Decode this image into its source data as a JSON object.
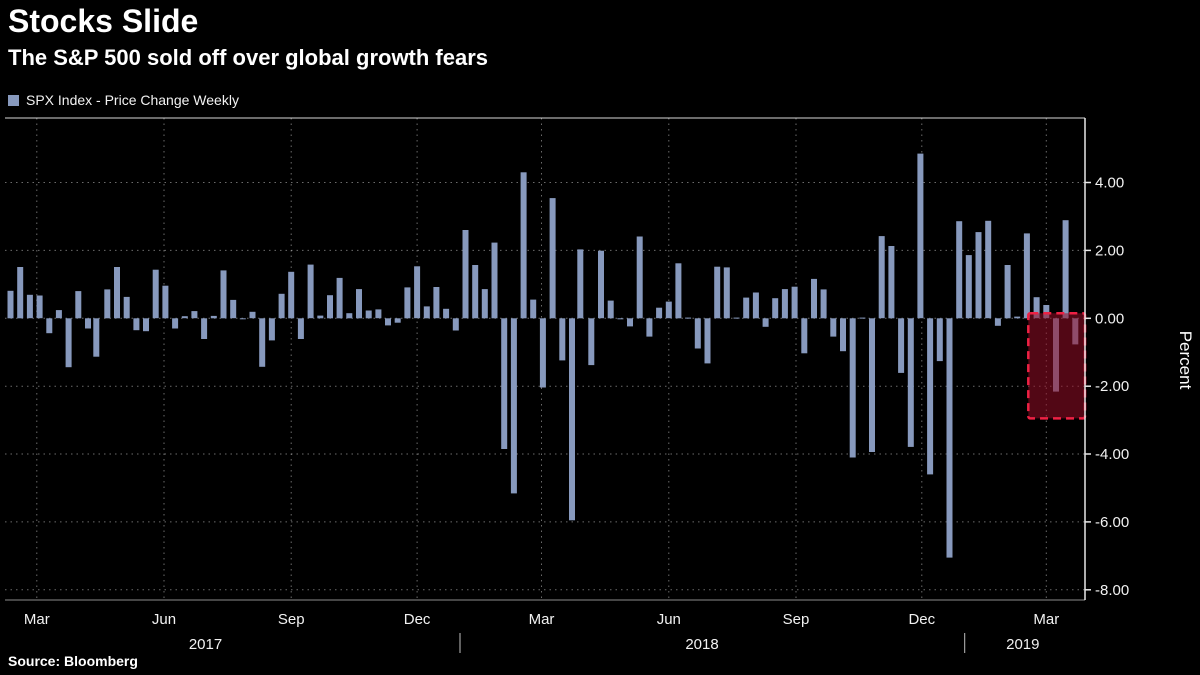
{
  "header": {
    "title": "Stocks Slide",
    "subtitle": "The S&P 500 sold off over global growth fears"
  },
  "legend": {
    "label": "SPX Index - Price Change Weekly",
    "swatch_color": "#8799bd"
  },
  "footer": {
    "source": "Source: Bloomberg"
  },
  "chart_data": {
    "type": "bar",
    "title": "Stocks Slide",
    "subtitle": "The S&P 500 sold off over global growth fears",
    "legend": "SPX Index - Price Change Weekly",
    "ylabel": "Percent",
    "ylim": [
      -8.3,
      5.9
    ],
    "yticks": [
      4,
      2,
      0,
      -2,
      -4,
      -6,
      -8
    ],
    "ytick_labels": [
      "4.00",
      "2.00",
      "0.00",
      "-2.00",
      "-4.00",
      "-6.00",
      "-8.00"
    ],
    "grid": true,
    "bar_color": "#8799bd",
    "x_start": "2017-02-06",
    "x_end": "2019-03-29",
    "months": [
      {
        "date": "2017-03-01",
        "label": "Mar"
      },
      {
        "date": "2017-06-01",
        "label": "Jun"
      },
      {
        "date": "2017-09-01",
        "label": "Sep"
      },
      {
        "date": "2017-12-01",
        "label": "Dec"
      },
      {
        "date": "2018-03-01",
        "label": "Mar"
      },
      {
        "date": "2018-06-01",
        "label": "Jun"
      },
      {
        "date": "2018-09-01",
        "label": "Sep"
      },
      {
        "date": "2018-12-01",
        "label": "Dec"
      },
      {
        "date": "2019-03-01",
        "label": "Mar"
      }
    ],
    "years": [
      {
        "date": "2017-07-01",
        "label": "2017"
      },
      {
        "date": "2018-06-25",
        "label": "2018"
      },
      {
        "date": "2019-02-12",
        "label": "2019"
      }
    ],
    "year_separators": [
      "2018-01-01",
      "2019-01-01"
    ],
    "highlight": {
      "date_start": "2019-02-16",
      "date_end": "2019-03-29",
      "value_top": 0.15,
      "value_bottom": -2.95,
      "fill": "rgba(150,12,38,0.55)",
      "border": "#ee2144"
    },
    "series": [
      {
        "name": "SPX Index - Price Change Weekly",
        "unit": "percent",
        "points": [
          [
            "2017-02-10",
            0.81
          ],
          [
            "2017-02-17",
            1.51
          ],
          [
            "2017-02-24",
            0.69
          ],
          [
            "2017-03-03",
            0.67
          ],
          [
            "2017-03-10",
            -0.44
          ],
          [
            "2017-03-17",
            0.24
          ],
          [
            "2017-03-24",
            -1.44
          ],
          [
            "2017-03-31",
            0.8
          ],
          [
            "2017-04-07",
            -0.3
          ],
          [
            "2017-04-13",
            -1.13
          ],
          [
            "2017-04-21",
            0.85
          ],
          [
            "2017-04-28",
            1.51
          ],
          [
            "2017-05-05",
            0.63
          ],
          [
            "2017-05-12",
            -0.35
          ],
          [
            "2017-05-19",
            -0.38
          ],
          [
            "2017-05-26",
            1.43
          ],
          [
            "2017-06-02",
            0.96
          ],
          [
            "2017-06-09",
            -0.3
          ],
          [
            "2017-06-16",
            0.06
          ],
          [
            "2017-06-23",
            0.21
          ],
          [
            "2017-06-30",
            -0.61
          ],
          [
            "2017-07-07",
            0.07
          ],
          [
            "2017-07-14",
            1.41
          ],
          [
            "2017-07-21",
            0.54
          ],
          [
            "2017-07-28",
            -0.02
          ],
          [
            "2017-08-04",
            0.19
          ],
          [
            "2017-08-11",
            -1.43
          ],
          [
            "2017-08-18",
            -0.65
          ],
          [
            "2017-08-25",
            0.72
          ],
          [
            "2017-09-01",
            1.37
          ],
          [
            "2017-09-08",
            -0.61
          ],
          [
            "2017-09-15",
            1.58
          ],
          [
            "2017-09-22",
            0.08
          ],
          [
            "2017-09-29",
            0.68
          ],
          [
            "2017-10-06",
            1.19
          ],
          [
            "2017-10-13",
            0.15
          ],
          [
            "2017-10-20",
            0.86
          ],
          [
            "2017-10-27",
            0.23
          ],
          [
            "2017-11-03",
            0.26
          ],
          [
            "2017-11-10",
            -0.21
          ],
          [
            "2017-11-17",
            -0.13
          ],
          [
            "2017-11-24",
            0.91
          ],
          [
            "2017-12-01",
            1.53
          ],
          [
            "2017-12-08",
            0.35
          ],
          [
            "2017-12-15",
            0.92
          ],
          [
            "2017-12-22",
            0.28
          ],
          [
            "2017-12-29",
            -0.36
          ],
          [
            "2018-01-05",
            2.6
          ],
          [
            "2018-01-12",
            1.57
          ],
          [
            "2018-01-19",
            0.86
          ],
          [
            "2018-01-26",
            2.23
          ],
          [
            "2018-02-02",
            -3.85
          ],
          [
            "2018-02-09",
            -5.16
          ],
          [
            "2018-02-16",
            4.3
          ],
          [
            "2018-02-23",
            0.55
          ],
          [
            "2018-03-02",
            -2.04
          ],
          [
            "2018-03-09",
            3.54
          ],
          [
            "2018-03-16",
            -1.24
          ],
          [
            "2018-03-23",
            -5.95
          ],
          [
            "2018-03-29",
            2.03
          ],
          [
            "2018-04-06",
            -1.38
          ],
          [
            "2018-04-13",
            1.99
          ],
          [
            "2018-04-20",
            0.52
          ],
          [
            "2018-04-27",
            -0.01
          ],
          [
            "2018-05-04",
            -0.24
          ],
          [
            "2018-05-11",
            2.41
          ],
          [
            "2018-05-18",
            -0.54
          ],
          [
            "2018-05-25",
            0.31
          ],
          [
            "2018-06-01",
            0.49
          ],
          [
            "2018-06-08",
            1.62
          ],
          [
            "2018-06-15",
            0.02
          ],
          [
            "2018-06-22",
            -0.89
          ],
          [
            "2018-06-29",
            -1.33
          ],
          [
            "2018-07-06",
            1.52
          ],
          [
            "2018-07-13",
            1.5
          ],
          [
            "2018-07-20",
            0.02
          ],
          [
            "2018-07-27",
            0.61
          ],
          [
            "2018-08-03",
            0.76
          ],
          [
            "2018-08-10",
            -0.25
          ],
          [
            "2018-08-17",
            0.59
          ],
          [
            "2018-08-24",
            0.86
          ],
          [
            "2018-08-31",
            0.93
          ],
          [
            "2018-09-07",
            -1.03
          ],
          [
            "2018-09-14",
            1.16
          ],
          [
            "2018-09-21",
            0.85
          ],
          [
            "2018-09-28",
            -0.54
          ],
          [
            "2018-10-05",
            -0.97
          ],
          [
            "2018-10-12",
            -4.1
          ],
          [
            "2018-10-19",
            0.02
          ],
          [
            "2018-10-26",
            -3.94
          ],
          [
            "2018-11-02",
            2.42
          ],
          [
            "2018-11-09",
            2.13
          ],
          [
            "2018-11-16",
            -1.61
          ],
          [
            "2018-11-23",
            -3.79
          ],
          [
            "2018-11-30",
            4.85
          ],
          [
            "2018-12-07",
            -4.6
          ],
          [
            "2018-12-14",
            -1.26
          ],
          [
            "2018-12-21",
            -7.05
          ],
          [
            "2018-12-28",
            2.86
          ],
          [
            "2019-01-04",
            1.86
          ],
          [
            "2019-01-11",
            2.54
          ],
          [
            "2019-01-18",
            2.87
          ],
          [
            "2019-01-25",
            -0.22
          ],
          [
            "2019-02-01",
            1.57
          ],
          [
            "2019-02-08",
            0.05
          ],
          [
            "2019-02-15",
            2.5
          ],
          [
            "2019-02-22",
            0.62
          ],
          [
            "2019-03-01",
            0.39
          ],
          [
            "2019-03-08",
            -2.16
          ],
          [
            "2019-03-15",
            2.89
          ],
          [
            "2019-03-22",
            -0.77
          ]
        ]
      }
    ]
  }
}
